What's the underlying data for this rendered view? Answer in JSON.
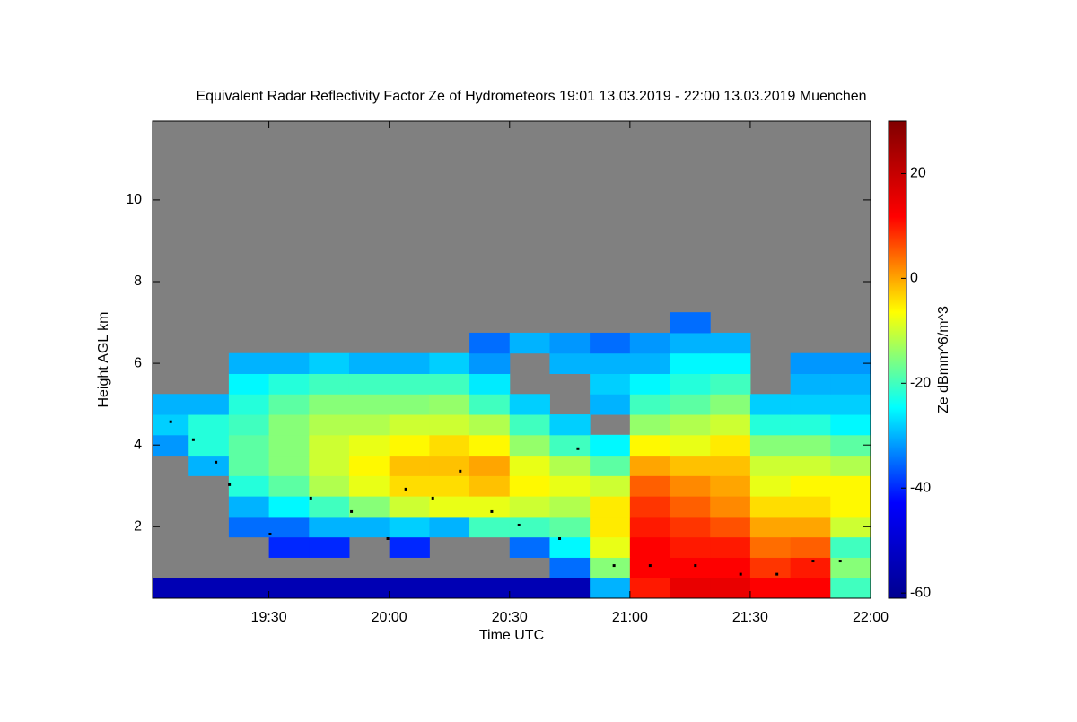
{
  "chart_data": {
    "type": "heatmap",
    "title": "Equivalent Radar Reflectivity Factor Ze of Hydrometeors   19:01 13.03.2019 - 22:00 13.03.2019 Muenchen",
    "xlabel": "Time UTC",
    "ylabel": "Height AGL km",
    "colorbar_label": "Ze dBmm^6/m^3",
    "xlim": [
      19.0167,
      22.0
    ],
    "ylim": [
      0.25,
      11.93
    ],
    "clim": [
      -61,
      30
    ],
    "xticks": [
      {
        "value": 19.5,
        "label": "19:30"
      },
      {
        "value": 20.0,
        "label": "20:00"
      },
      {
        "value": 20.5,
        "label": "20:30"
      },
      {
        "value": 21.0,
        "label": "21:00"
      },
      {
        "value": 21.5,
        "label": "21:30"
      },
      {
        "value": 22.0,
        "label": "22:00"
      }
    ],
    "yticks": [
      2,
      4,
      6,
      8,
      10
    ],
    "cticks": [
      20,
      0,
      -20,
      -40,
      -60
    ],
    "colormap": [
      "#00008f",
      "#0000ff",
      "#00ffff",
      "#ffff00",
      "#ff0000",
      "#800000"
    ],
    "background": "#808080",
    "xbins": [
      19.0167,
      19.1667,
      19.3333,
      19.5,
      19.6667,
      19.8333,
      20.0,
      20.1667,
      20.3333,
      20.5,
      20.6667,
      20.8333,
      21.0,
      21.1667,
      21.3333,
      21.5,
      21.6667,
      21.8333,
      22.0
    ],
    "ybins": [
      0.25,
      0.75,
      1.25,
      1.75,
      2.25,
      2.75,
      3.25,
      3.75,
      4.25,
      4.75,
      5.25,
      5.75,
      6.25,
      6.75,
      7.25
    ],
    "values": [
      [
        -55,
        -55,
        -55,
        -55,
        -55,
        -55,
        -55,
        -55,
        -55,
        -55,
        -55,
        -30,
        10,
        15,
        15,
        12,
        12,
        -20
      ],
      [
        null,
        null,
        null,
        null,
        null,
        null,
        null,
        null,
        null,
        null,
        -35,
        -15,
        12,
        12,
        12,
        8,
        10,
        -15
      ],
      [
        null,
        null,
        null,
        -40,
        -40,
        null,
        -40,
        null,
        null,
        -35,
        -25,
        -8,
        12,
        10,
        10,
        4,
        5,
        -20
      ],
      [
        null,
        null,
        -35,
        -35,
        -30,
        -30,
        -28,
        -30,
        -20,
        -20,
        -18,
        -5,
        10,
        8,
        6,
        0,
        0,
        -10
      ],
      [
        null,
        null,
        -30,
        -25,
        -20,
        -15,
        -10,
        -8,
        -8,
        -10,
        -12,
        -5,
        8,
        5,
        2,
        -4,
        -4,
        -6
      ],
      [
        null,
        null,
        -22,
        -18,
        -12,
        -8,
        -4,
        -4,
        -2,
        -6,
        -8,
        -10,
        5,
        2,
        0,
        -8,
        -6,
        -6
      ],
      [
        null,
        -30,
        -18,
        -15,
        -10,
        -6,
        -2,
        -2,
        0,
        -8,
        -12,
        -18,
        0,
        -2,
        -2,
        -10,
        -10,
        -12
      ],
      [
        -32,
        -22,
        -18,
        -15,
        -10,
        -8,
        -6,
        -4,
        -6,
        -14,
        -20,
        -25,
        -6,
        -8,
        -5,
        -15,
        -15,
        -18
      ],
      [
        -28,
        -22,
        -20,
        -15,
        -12,
        -12,
        -10,
        -10,
        -12,
        -20,
        -28,
        null,
        -14,
        -12,
        -10,
        -22,
        -22,
        -25
      ],
      [
        -30,
        -30,
        -22,
        -18,
        -15,
        -15,
        -15,
        -14,
        -20,
        -28,
        null,
        -30,
        -20,
        -18,
        -15,
        -28,
        -28,
        -28
      ],
      [
        null,
        null,
        -25,
        -22,
        -20,
        -20,
        -20,
        -20,
        -26,
        null,
        null,
        -28,
        -25,
        -22,
        -20,
        null,
        -30,
        -30
      ],
      [
        null,
        null,
        -30,
        -30,
        -28,
        -30,
        -30,
        -28,
        -32,
        null,
        -30,
        -30,
        -30,
        -25,
        -25,
        null,
        -32,
        -32
      ],
      [
        null,
        null,
        null,
        null,
        null,
        null,
        null,
        null,
        -35,
        -30,
        -32,
        -35,
        -32,
        -30,
        -30,
        null,
        null,
        null
      ],
      [
        null,
        null,
        null,
        null,
        null,
        null,
        null,
        null,
        null,
        null,
        null,
        null,
        null,
        -35,
        null,
        null,
        null,
        null
      ]
    ],
    "cloud_base": {
      "color": "#000000",
      "x": [
        19.092,
        19.186,
        19.28,
        19.336,
        19.505,
        19.674,
        19.843,
        19.994,
        20.069,
        20.181,
        20.295,
        20.426,
        20.539,
        20.708,
        20.784,
        20.934,
        21.084,
        21.272,
        21.46,
        21.611,
        21.761,
        21.874
      ],
      "y": [
        4.57,
        4.13,
        3.58,
        3.03,
        1.82,
        2.7,
        2.37,
        1.71,
        2.92,
        2.7,
        3.36,
        2.37,
        2.04,
        1.71,
        3.91,
        1.05,
        1.05,
        1.05,
        0.84,
        0.84,
        1.16,
        1.16
      ]
    }
  }
}
